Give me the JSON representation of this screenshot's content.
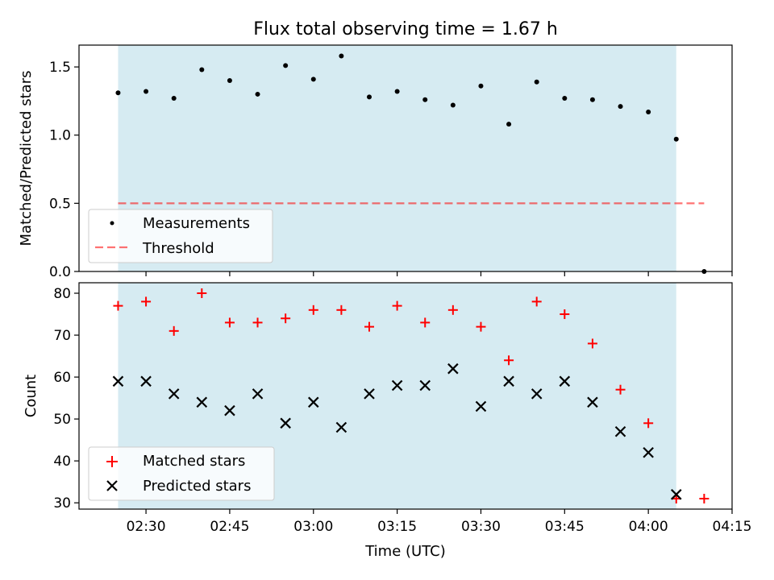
{
  "chart_data": {
    "type": "scatter",
    "title": "Flux total observing time = 1.67 h",
    "xlabel": "Time (UTC)",
    "x_tick_labels": [
      "02:30",
      "02:45",
      "03:00",
      "03:15",
      "03:30",
      "03:45",
      "04:00",
      "04:15"
    ],
    "x": [
      "02:25",
      "02:30",
      "02:35",
      "02:40",
      "02:45",
      "02:50",
      "02:55",
      "03:00",
      "03:05",
      "03:10",
      "03:15",
      "03:20",
      "03:25",
      "03:30",
      "03:35",
      "03:40",
      "03:45",
      "03:50",
      "03:55",
      "04:00",
      "04:05",
      "04:10"
    ],
    "xlim": [
      "02:18",
      "04:15"
    ],
    "observing_window": [
      "02:25",
      "04:05"
    ],
    "colors": {
      "window": "#add8e6",
      "threshold": "#ff0000",
      "matched": "#ff0000",
      "predicted": "#000000",
      "measurements": "#000000"
    },
    "top_panel": {
      "ylabel": "Matched/Predicted stars",
      "ylim": [
        0,
        1.66
      ],
      "yticks": [
        "0.0",
        "0.5",
        "1.0",
        "1.5"
      ],
      "series": [
        {
          "name": "Measurements",
          "marker": "dot",
          "values": [
            1.31,
            1.32,
            1.27,
            1.48,
            1.4,
            1.3,
            1.51,
            1.41,
            1.58,
            1.28,
            1.32,
            1.26,
            1.22,
            1.36,
            1.08,
            1.39,
            1.27,
            1.26,
            1.21,
            1.17,
            0.97,
            0.0
          ]
        }
      ],
      "threshold": {
        "name": "Threshold",
        "value": 0.5,
        "x": [
          "02:25",
          "04:10"
        ]
      },
      "legend": "lower-left"
    },
    "bottom_panel": {
      "ylabel": "Count",
      "ylim": [
        28.5,
        82.5
      ],
      "yticks": [
        "30",
        "40",
        "50",
        "60",
        "70",
        "80"
      ],
      "series": [
        {
          "name": "Matched stars",
          "marker": "plus",
          "values": [
            77,
            78,
            71,
            80,
            73,
            73,
            74,
            76,
            76,
            72,
            77,
            73,
            76,
            72,
            64,
            78,
            75,
            68,
            57,
            49,
            31,
            31
          ]
        },
        {
          "name": "Predicted stars",
          "marker": "x",
          "values": [
            59,
            59,
            56,
            54,
            52,
            56,
            49,
            54,
            48,
            56,
            58,
            58,
            62,
            53,
            59,
            56,
            59,
            54,
            47,
            42,
            32,
            null
          ]
        }
      ],
      "legend": "lower-left"
    }
  }
}
